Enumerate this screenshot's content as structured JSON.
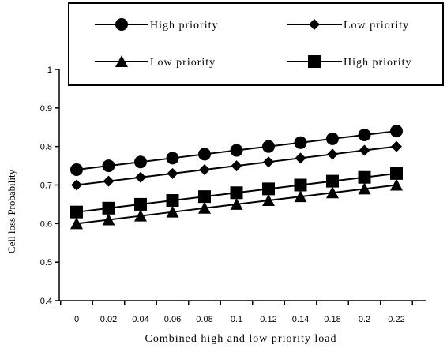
{
  "chart_data": {
    "type": "line",
    "categories": [
      "0",
      "0.02",
      "0.04",
      "0.06",
      "0.08",
      "0.1",
      "0.12",
      "0.14",
      "0.18",
      "0.2",
      "0.22"
    ],
    "xlabel": "Combined high and low priority load",
    "ylabel": "Cell loss Probability",
    "ylim": [
      0.4,
      1
    ],
    "yticks": [
      "0.4",
      "0.5",
      "0.6",
      "0.7",
      "0.8",
      "0.9",
      "1"
    ],
    "grid": false,
    "legend_position": "top",
    "series": [
      {
        "name": "High priority",
        "marker": "circle",
        "values": [
          0.74,
          0.75,
          0.76,
          0.77,
          0.78,
          0.79,
          0.8,
          0.81,
          0.82,
          0.83,
          0.84
        ]
      },
      {
        "name": "Low priority",
        "marker": "diamond",
        "values": [
          0.7,
          0.71,
          0.72,
          0.73,
          0.74,
          0.75,
          0.76,
          0.77,
          0.78,
          0.79,
          0.8
        ]
      },
      {
        "name": "Low priority",
        "marker": "triangle",
        "values": [
          0.6,
          0.61,
          0.62,
          0.63,
          0.64,
          0.65,
          0.66,
          0.67,
          0.68,
          0.69,
          0.7
        ]
      },
      {
        "name": "High priority",
        "marker": "square",
        "values": [
          0.63,
          0.64,
          0.65,
          0.66,
          0.67,
          0.68,
          0.69,
          0.7,
          0.71,
          0.72,
          0.73
        ]
      }
    ],
    "colors": {
      "line": "#000000",
      "marker": "#000000"
    }
  }
}
